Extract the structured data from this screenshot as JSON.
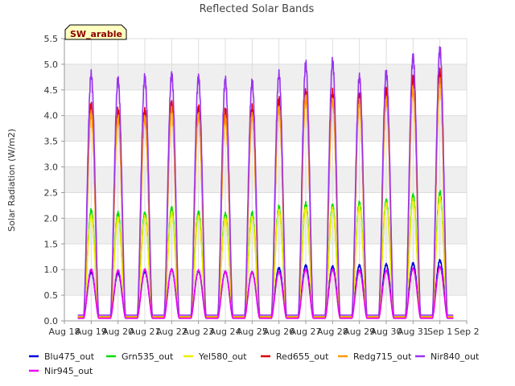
{
  "chart_data": {
    "type": "line",
    "title": "Reflected Solar Bands",
    "ylabel": "Solar Radiation (W/m2)",
    "xlabel": "",
    "site_label": "SW_arable",
    "xlim": [
      0,
      15
    ],
    "ylim": [
      0,
      5.5
    ],
    "y_ticks": [
      0.0,
      0.5,
      1.0,
      1.5,
      2.0,
      2.5,
      3.0,
      3.5,
      4.0,
      4.5,
      5.0,
      5.5
    ],
    "y_tick_labels": [
      "0.0",
      "0.5",
      "1.0",
      "1.5",
      "2.0",
      "2.5",
      "3.0",
      "3.5",
      "4.0",
      "4.5",
      "5.0",
      "5.5"
    ],
    "x_tick_labels": [
      "Aug 18",
      "Aug 19",
      "Aug 20",
      "Aug 21",
      "Aug 22",
      "Aug 23",
      "Aug 24",
      "Aug 25",
      "Aug 26",
      "Aug 27",
      "Aug 28",
      "Aug 29",
      "Aug 30",
      "Aug 31",
      "Sep 1",
      "Sep 2"
    ],
    "grid": true,
    "legend_position": "bottom",
    "day_start": 0.5,
    "days": 14,
    "series": [
      {
        "name": "Blu475_out",
        "color": "#0000dd",
        "baseline": 0.07,
        "daily_peaks": [
          0.95,
          0.93,
          0.96,
          1.0,
          0.97,
          0.96,
          0.95,
          1.03,
          1.08,
          1.06,
          1.08,
          1.1,
          1.12,
          1.18
        ]
      },
      {
        "name": "Grn535_out",
        "color": "#00dd00",
        "baseline": 0.08,
        "daily_peaks": [
          2.15,
          2.1,
          2.1,
          2.2,
          2.12,
          2.08,
          2.1,
          2.22,
          2.28,
          2.25,
          2.3,
          2.35,
          2.45,
          2.5
        ]
      },
      {
        "name": "Yel580_out",
        "color": "#eeee00",
        "baseline": 0.08,
        "daily_peaks": [
          2.05,
          2.0,
          2.02,
          2.1,
          2.03,
          2.0,
          2.02,
          2.15,
          2.2,
          2.18,
          2.22,
          2.28,
          2.35,
          2.4
        ]
      },
      {
        "name": "Red655_out",
        "color": "#dd0000",
        "baseline": 0.07,
        "daily_peaks": [
          4.2,
          4.1,
          4.1,
          4.25,
          4.15,
          4.1,
          4.15,
          4.3,
          4.45,
          4.45,
          4.4,
          4.5,
          4.75,
          4.85
        ]
      },
      {
        "name": "Redg715_out",
        "color": "#ff9900",
        "baseline": 0.07,
        "daily_peaks": [
          4.05,
          3.95,
          3.95,
          4.1,
          4.0,
          3.95,
          4.0,
          4.15,
          4.35,
          4.3,
          4.25,
          4.3,
          4.5,
          4.65
        ]
      },
      {
        "name": "Nir840_out",
        "color": "#9933ee",
        "baseline": 0.11,
        "daily_peaks": [
          4.8,
          4.7,
          4.75,
          4.8,
          4.75,
          4.7,
          4.65,
          4.8,
          5.0,
          5.05,
          4.75,
          4.85,
          5.15,
          5.3
        ]
      },
      {
        "name": "Nir945_out",
        "color": "#ee00ee",
        "baseline": 0.05,
        "daily_peaks": [
          1.0,
          0.98,
          1.0,
          1.0,
          0.98,
          0.96,
          0.95,
          0.95,
          1.0,
          1.0,
          0.98,
          0.98,
          1.02,
          1.05
        ]
      }
    ]
  }
}
